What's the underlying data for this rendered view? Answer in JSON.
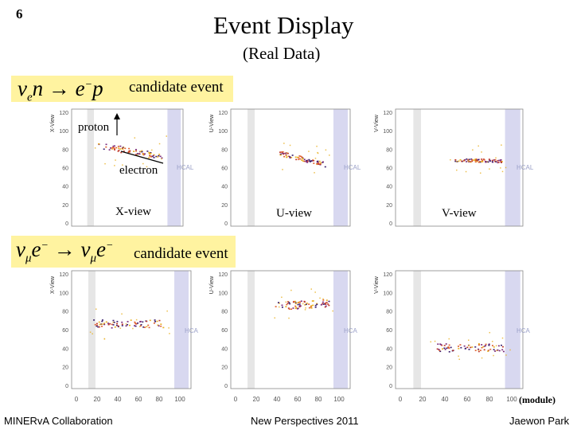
{
  "slide": {
    "number": "6",
    "title": "Event Display",
    "subtitle": "(Real Data)"
  },
  "row1": {
    "equation": "νₑn → e⁻p",
    "candidate_label": "candidate event",
    "proton_label": "proton",
    "electron_label": "electron"
  },
  "row2": {
    "equation": "ν_μe⁻ → ν_μe⁻",
    "candidate_label": "candidate event"
  },
  "view_labels": {
    "x": "X-view",
    "u": "U-view",
    "v": "V-view"
  },
  "panel_axis_titles": {
    "x": "X-View",
    "u": "U-View",
    "v": "V-View"
  },
  "y_ticks": [
    "120",
    "100",
    "80",
    "60",
    "40",
    "20",
    "0"
  ],
  "x_ticks": [
    "0",
    "20",
    "40",
    "60",
    "80",
    "100"
  ],
  "hcal_label": "HCAL",
  "hca_label": "HCA",
  "unit_label": "(module)",
  "footer": {
    "left": "MINERvA Collaboration",
    "center": "New Perspectives 2011",
    "right": "Jaewon Park"
  },
  "colors": {
    "highlight": "#fff3a0",
    "hit_dark": "#3a1f6e",
    "hit_mid": "#c0392b",
    "hit_light": "#e8b020",
    "hcal_band": "#d8d8f0"
  }
}
